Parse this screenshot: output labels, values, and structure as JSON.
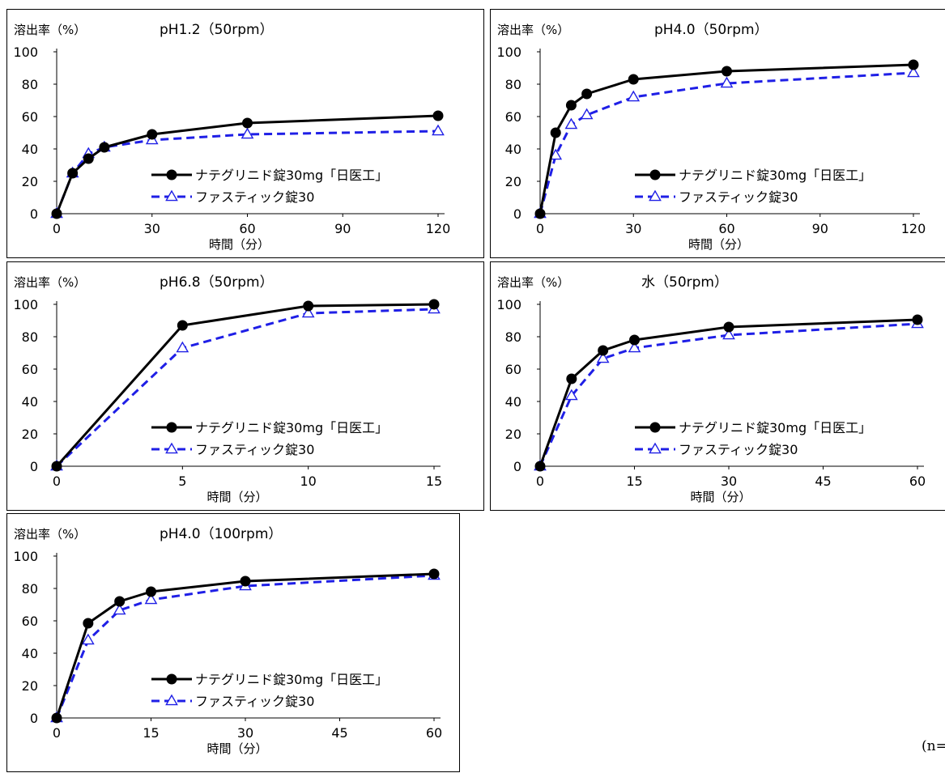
{
  "footnote": "(n=",
  "chart_data": [
    {
      "type": "line",
      "title": "pH1.2（50rpm）",
      "ylabel": "溶出率（%）",
      "xlabel": "時間（分）",
      "ylim": [
        0,
        100
      ],
      "xlim": [
        0,
        120
      ],
      "yticks": [
        0,
        20,
        40,
        60,
        80,
        100
      ],
      "xticks": [
        0,
        30,
        60,
        90,
        120
      ],
      "legend": "lower-right",
      "series": [
        {
          "name": "ナテグリニド錠30mg「日医工」",
          "color": "#000000",
          "marker": "circle",
          "dash": "solid",
          "x": [
            0,
            5,
            10,
            15,
            30,
            60,
            120
          ],
          "y": [
            0,
            25,
            34,
            41,
            49,
            56,
            60.5
          ]
        },
        {
          "name": "ファスティック錠30",
          "color": "#1f1fe6",
          "marker": "triangle",
          "dash": "dashed",
          "x": [
            0,
            5,
            10,
            15,
            30,
            60,
            120
          ],
          "y": [
            0,
            25,
            37,
            41,
            45.5,
            49,
            51
          ]
        }
      ]
    },
    {
      "type": "line",
      "title": "pH4.0（50rpm）",
      "ylabel": "溶出率（%）",
      "xlabel": "時間（分）",
      "ylim": [
        0,
        100
      ],
      "xlim": [
        0,
        120
      ],
      "yticks": [
        0,
        20,
        40,
        60,
        80,
        100
      ],
      "xticks": [
        0,
        30,
        60,
        90,
        120
      ],
      "legend": "lower-right",
      "series": [
        {
          "name": "ナテグリニド錠30mg「日医工」",
          "color": "#000000",
          "marker": "circle",
          "dash": "solid",
          "x": [
            0,
            5,
            10,
            15,
            30,
            60,
            120
          ],
          "y": [
            0,
            50,
            67,
            74,
            83,
            88,
            92
          ]
        },
        {
          "name": "ファスティック錠30",
          "color": "#1f1fe6",
          "marker": "triangle",
          "dash": "dashed",
          "x": [
            0,
            5,
            10,
            15,
            30,
            60,
            120
          ],
          "y": [
            0,
            36,
            55,
            61,
            72,
            80.5,
            87
          ]
        }
      ]
    },
    {
      "type": "line",
      "title": "pH6.8（50rpm）",
      "ylabel": "溶出率（%）",
      "xlabel": "時間（分）",
      "ylim": [
        0,
        100
      ],
      "xlim": [
        0,
        15
      ],
      "yticks": [
        0,
        20,
        40,
        60,
        80,
        100
      ],
      "xticks": [
        0,
        5,
        10,
        15
      ],
      "legend": "lower-right",
      "series": [
        {
          "name": "ナテグリニド錠30mg「日医工」",
          "color": "#000000",
          "marker": "circle",
          "dash": "solid",
          "x": [
            0,
            5,
            10,
            15
          ],
          "y": [
            0,
            87,
            99,
            100
          ]
        },
        {
          "name": "ファスティック錠30",
          "color": "#1f1fe6",
          "marker": "triangle",
          "dash": "dashed",
          "x": [
            0,
            5,
            10,
            15
          ],
          "y": [
            0,
            73,
            94.5,
            97
          ]
        }
      ]
    },
    {
      "type": "line",
      "title": "水（50rpm）",
      "ylabel": "溶出率（%）",
      "xlabel": "時間（分）",
      "ylim": [
        0,
        100
      ],
      "xlim": [
        0,
        60
      ],
      "yticks": [
        0,
        20,
        40,
        60,
        80,
        100
      ],
      "xticks": [
        0,
        15,
        30,
        45,
        60
      ],
      "legend": "lower-right",
      "series": [
        {
          "name": "ナテグリニド錠30mg「日医工」",
          "color": "#000000",
          "marker": "circle",
          "dash": "solid",
          "x": [
            0,
            5,
            10,
            15,
            30,
            60
          ],
          "y": [
            0,
            54,
            71.5,
            78,
            86,
            90.5
          ]
        },
        {
          "name": "ファスティック錠30",
          "color": "#1f1fe6",
          "marker": "triangle",
          "dash": "dashed",
          "x": [
            0,
            5,
            10,
            15,
            30,
            60
          ],
          "y": [
            0,
            43.5,
            66.5,
            73,
            81,
            88
          ]
        }
      ]
    },
    {
      "type": "line",
      "title": "pH4.0（100rpm）",
      "ylabel": "溶出率（%）",
      "xlabel": "時間（分）",
      "ylim": [
        0,
        100
      ],
      "xlim": [
        0,
        60
      ],
      "yticks": [
        0,
        20,
        40,
        60,
        80,
        100
      ],
      "xticks": [
        0,
        15,
        30,
        45,
        60
      ],
      "legend": "lower-right",
      "series": [
        {
          "name": "ナテグリニド錠30mg「日医工」",
          "color": "#000000",
          "marker": "circle",
          "dash": "solid",
          "x": [
            0,
            5,
            10,
            15,
            30,
            60
          ],
          "y": [
            0,
            58.5,
            72,
            78,
            84.5,
            89
          ]
        },
        {
          "name": "ファスティック錠30",
          "color": "#1f1fe6",
          "marker": "triangle",
          "dash": "dashed",
          "x": [
            0,
            5,
            10,
            15,
            30,
            60
          ],
          "y": [
            0,
            48,
            66.5,
            73,
            81.5,
            88
          ]
        }
      ]
    }
  ]
}
